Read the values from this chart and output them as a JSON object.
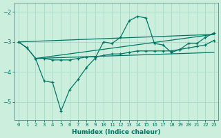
{
  "xlabel": "Humidex (Indice chaleur)",
  "background_color": "#cceedd",
  "grid_color": "#aaddcc",
  "line_color": "#007766",
  "xlim": [
    -0.5,
    23.5
  ],
  "ylim": [
    -5.6,
    -1.7
  ],
  "yticks": [
    -5,
    -4,
    -3,
    -2
  ],
  "xticks": [
    0,
    1,
    2,
    3,
    4,
    5,
    6,
    7,
    8,
    9,
    10,
    11,
    12,
    13,
    14,
    15,
    16,
    17,
    18,
    19,
    20,
    21,
    22,
    23
  ],
  "line_zigzag_x": [
    0,
    1,
    2,
    3,
    4,
    5,
    6,
    7,
    8,
    9,
    10,
    11,
    12,
    13,
    14,
    15,
    16,
    17,
    18,
    19,
    20,
    21,
    22,
    23
  ],
  "line_zigzag_y": [
    -3.0,
    -3.2,
    -3.55,
    -4.3,
    -4.35,
    -5.3,
    -4.6,
    -4.25,
    -3.85,
    -3.55,
    -3.0,
    -3.05,
    -2.85,
    -2.3,
    -2.15,
    -2.2,
    -3.05,
    -3.1,
    -3.35,
    -3.25,
    -3.05,
    -3.05,
    -2.85,
    -2.7
  ],
  "line_flat1_x": [
    0,
    1,
    2,
    3,
    4,
    5,
    6,
    7,
    8,
    9,
    10,
    11,
    12,
    13,
    14,
    15,
    16,
    17,
    18,
    19,
    20,
    21,
    22,
    23
  ],
  "line_flat1_y": [
    -3.0,
    -3.2,
    -3.55,
    -3.55,
    -3.6,
    -3.6,
    -3.6,
    -3.55,
    -3.5,
    -3.5,
    -3.45,
    -3.4,
    -3.4,
    -3.35,
    -3.3,
    -3.3,
    -3.3,
    -3.3,
    -3.3,
    -3.25,
    -3.2,
    -3.15,
    -3.1,
    -2.95
  ],
  "trend1_x": [
    0,
    23
  ],
  "trend1_y": [
    -3.0,
    -2.75
  ],
  "trend2_x": [
    2,
    23
  ],
  "trend2_y": [
    -3.55,
    -2.75
  ],
  "trend3_x": [
    2,
    23
  ],
  "trend3_y": [
    -3.55,
    -3.35
  ]
}
